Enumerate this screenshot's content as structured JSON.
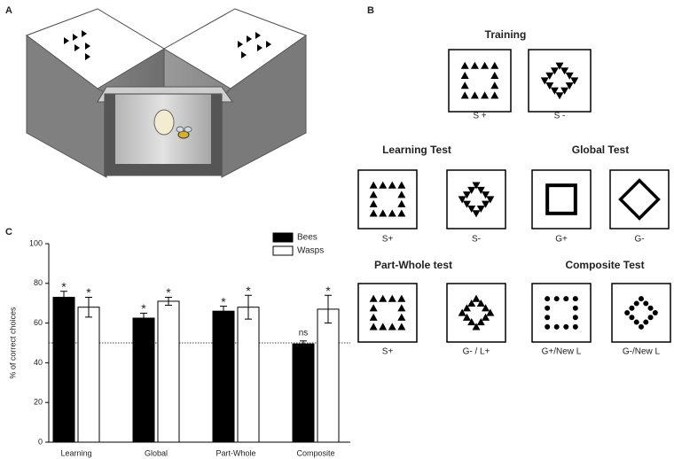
{
  "panels": {
    "a": "A",
    "b": "B",
    "c": "C"
  },
  "stimuli": {
    "sections": [
      {
        "title": "Training",
        "labels": [
          "S +",
          "S -"
        ]
      },
      {
        "title": "Learning Test",
        "labels": [
          "S+",
          "S-"
        ]
      },
      {
        "title": "Global Test",
        "labels": [
          "G+",
          "G-"
        ]
      },
      {
        "title": "Part-Whole test",
        "labels": [
          "S+",
          "G- / L+"
        ]
      },
      {
        "title": "Composite Test",
        "labels": [
          "G+/New L",
          "G-/New L"
        ]
      }
    ]
  },
  "chart_data": {
    "type": "bar",
    "ylabel": "% of correct choices",
    "categories": [
      "Learning",
      "Global",
      "Part-Whole",
      "Composite"
    ],
    "series": [
      {
        "name": "Bees",
        "color": "#000000",
        "values": [
          73,
          62.5,
          66,
          49.5
        ],
        "errors": [
          3,
          2.5,
          2.5,
          1.5
        ],
        "annotations": [
          "*",
          "*",
          "*",
          "ns"
        ]
      },
      {
        "name": "Wasps",
        "color": "#ffffff",
        "values": [
          68,
          71,
          68,
          67
        ],
        "errors": [
          5,
          2,
          6,
          7
        ],
        "annotations": [
          "*",
          "*",
          "*",
          "*"
        ]
      }
    ],
    "ylim": [
      0,
      100
    ],
    "yticks": [
      0,
      20,
      40,
      60,
      80,
      100
    ],
    "reference_line": 50,
    "legend": "top-right"
  }
}
